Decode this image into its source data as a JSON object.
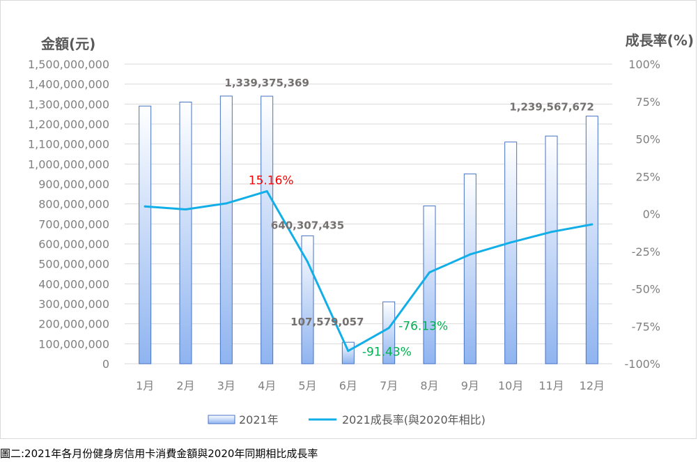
{
  "chart_data": {
    "type": "bar",
    "categories": [
      "1月",
      "2月",
      "3月",
      "4月",
      "5月",
      "6月",
      "7月",
      "8月",
      "9月",
      "10月",
      "11月",
      "12月"
    ],
    "series": [
      {
        "name": "2021年",
        "type": "bar",
        "axis": "left",
        "values": [
          1290000000,
          1310000000,
          1340000000,
          1339375369,
          640307435,
          107579057,
          310000000,
          790000000,
          950000000,
          1110000000,
          1140000000,
          1239567672
        ]
      },
      {
        "name": "2021成長率(與2020年相比)",
        "type": "line",
        "axis": "right",
        "values": [
          5,
          3,
          7,
          15.16,
          -32,
          -91.43,
          -76.13,
          -39,
          -27,
          -19,
          -12,
          -7
        ]
      }
    ],
    "ylabel_left": "金額(元)",
    "ylabel_right": "成長率(%)",
    "ylim_left": [
      0,
      1500000000
    ],
    "ylim_right": [
      -100,
      100
    ],
    "yticks_left": [
      "0",
      "100,000,000",
      "200,000,000",
      "300,000,000",
      "400,000,000",
      "500,000,000",
      "600,000,000",
      "700,000,000",
      "800,000,000",
      "900,000,000",
      "1,000,000,000",
      "1,100,000,000",
      "1,200,000,000",
      "1,300,000,000",
      "1,400,000,000",
      "1,500,000,000"
    ],
    "yticks_right": [
      "-100%",
      "-75%",
      "-50%",
      "-25%",
      "0%",
      "25%",
      "50%",
      "75%",
      "100%"
    ],
    "legend_position": "bottom",
    "annotations": [
      {
        "text": "1,339,375,369",
        "series": 0,
        "index": 3,
        "color": "#767171"
      },
      {
        "text": "640,307,435",
        "series": 0,
        "index": 4,
        "color": "#767171"
      },
      {
        "text": "107,579,057",
        "series": 0,
        "index": 5,
        "color": "#767171"
      },
      {
        "text": "1,239,567,672",
        "series": 0,
        "index": 11,
        "color": "#767171"
      },
      {
        "text": "15.16%",
        "series": 1,
        "index": 3,
        "color": "#ff0000"
      },
      {
        "text": "-91.43%",
        "series": 1,
        "index": 5,
        "color": "#00b050"
      },
      {
        "text": "-76.13%",
        "series": 1,
        "index": 6,
        "color": "#00b050"
      }
    ],
    "colors": {
      "bar_top": "#ffffff",
      "bar_bottom": "#8fb4f0",
      "bar_border": "#4472c4",
      "line": "#12aee7",
      "axis_text": "#808080",
      "grid": "#d9d9d9"
    }
  },
  "caption": "圖二:2021年各月份健身房信用卡消費金額與2020年同期相比成長率"
}
